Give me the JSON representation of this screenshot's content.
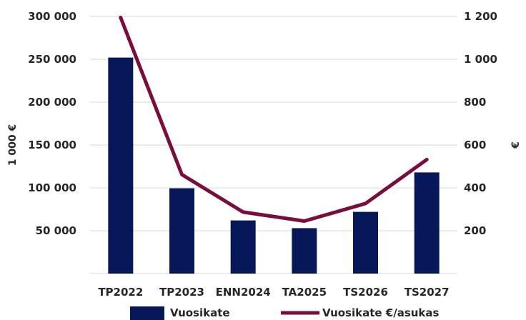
{
  "chart_data": {
    "type": "bar+line",
    "categories": [
      "TP2022",
      "TP2023",
      "ENN2024",
      "TA2025",
      "TS2026",
      "TS2027"
    ],
    "series": [
      {
        "name": "Vuosikate",
        "type": "bar",
        "axis": "left",
        "color": "#06175a",
        "values": [
          252000,
          99500,
          62000,
          53000,
          72000,
          118000
        ]
      },
      {
        "name": "Vuosikate €/asukas",
        "type": "line",
        "axis": "right",
        "color": "#7a0d3e",
        "values": [
          1195,
          462,
          287,
          245,
          327,
          532
        ]
      }
    ],
    "left_axis": {
      "label": "1 000 €",
      "min": 0,
      "max": 300000,
      "ticks": [
        50000,
        100000,
        150000,
        200000,
        250000,
        300000
      ],
      "tick_labels": [
        "50 000",
        "100 000",
        "150 000",
        "200 000",
        "250 000",
        "300 000"
      ]
    },
    "right_axis": {
      "label": "€",
      "min": 0,
      "max": 1200,
      "ticks": [
        200,
        400,
        600,
        800,
        1000,
        1200
      ],
      "tick_labels": [
        "200",
        "400",
        "600",
        "800",
        "1 000",
        "1 200"
      ]
    },
    "grid": true,
    "legend_position": "bottom"
  }
}
